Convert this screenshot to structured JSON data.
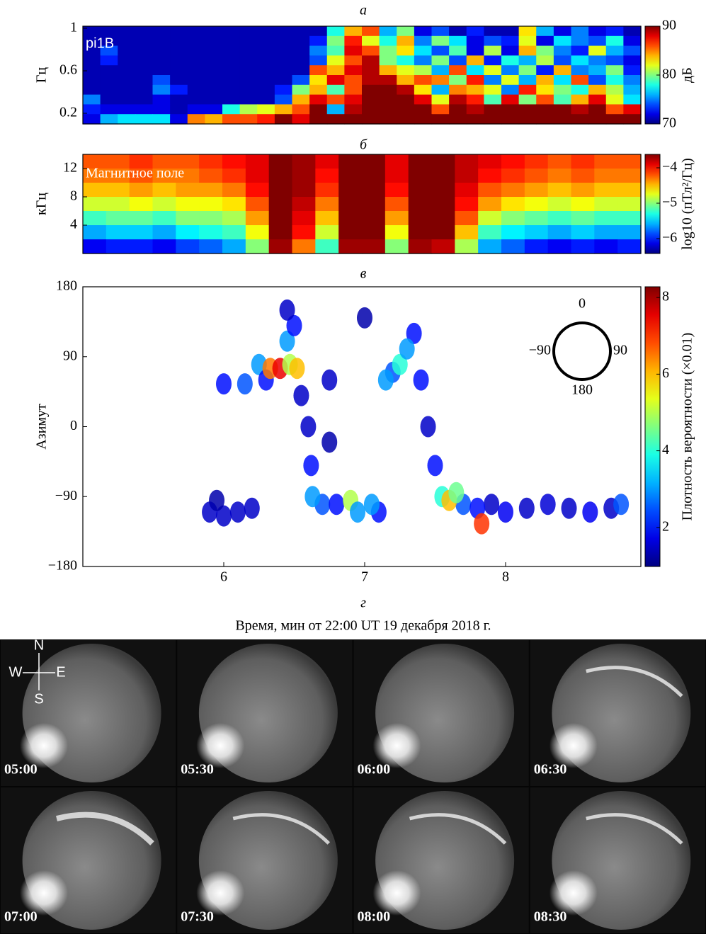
{
  "chart_data": [
    {
      "type": "heatmap",
      "title": "а",
      "annotation": "pi1B",
      "ylabel": "Гц",
      "zlabel": "дБ",
      "xlim": [
        5,
        8.96
      ],
      "ylim": [
        0.1,
        1.02
      ],
      "yticks": [
        1,
        0.6,
        0.2
      ],
      "clim": [
        70,
        90
      ],
      "cticks": [
        90,
        80,
        70
      ],
      "z": [
        [
          71,
          71,
          71,
          71,
          71,
          71,
          71,
          71,
          71,
          71,
          71,
          71,
          71,
          71,
          78,
          84,
          86,
          76,
          80,
          72,
          74,
          71,
          73,
          71,
          71,
          83,
          76,
          72,
          75,
          72,
          73,
          71
        ],
        [
          71,
          71,
          71,
          71,
          71,
          71,
          71,
          71,
          71,
          71,
          71,
          71,
          71,
          73,
          80,
          87,
          82,
          78,
          84,
          75,
          80,
          77,
          72,
          74,
          73,
          82,
          72,
          77,
          75,
          74,
          78,
          72
        ],
        [
          71,
          74,
          71,
          71,
          71,
          71,
          71,
          71,
          71,
          71,
          71,
          71,
          71,
          75,
          79,
          88,
          86,
          80,
          83,
          77,
          74,
          79,
          72,
          81,
          72,
          84,
          80,
          75,
          73,
          82,
          76,
          74
        ],
        [
          71,
          73,
          71,
          71,
          71,
          71,
          71,
          71,
          71,
          71,
          71,
          71,
          71,
          74,
          82,
          86,
          89,
          80,
          78,
          75,
          80,
          74,
          84,
          73,
          78,
          76,
          81,
          74,
          77,
          75,
          74,
          72
        ],
        [
          71,
          71,
          71,
          71,
          71,
          71,
          71,
          71,
          71,
          71,
          71,
          71,
          71,
          86,
          84,
          88,
          89,
          84,
          82,
          81,
          76,
          86,
          77,
          82,
          75,
          80,
          73,
          84,
          75,
          76,
          80,
          73
        ],
        [
          71,
          71,
          71,
          71,
          74,
          71,
          71,
          71,
          71,
          71,
          71,
          71,
          74,
          83,
          88,
          86,
          89,
          89,
          84,
          86,
          85,
          80,
          87,
          75,
          82,
          76,
          84,
          77,
          86,
          74,
          78,
          75
        ],
        [
          71,
          71,
          71,
          71,
          75,
          73,
          71,
          71,
          71,
          71,
          71,
          73,
          80,
          84,
          79,
          86,
          90,
          90,
          89,
          83,
          76,
          85,
          84,
          82,
          75,
          87,
          83,
          80,
          78,
          84,
          81,
          76
        ],
        [
          75,
          71,
          71,
          71,
          72,
          71,
          71,
          71,
          71,
          71,
          71,
          74,
          84,
          88,
          86,
          88,
          90,
          90,
          90,
          88,
          82,
          89,
          87,
          79,
          88,
          80,
          86,
          79,
          84,
          88,
          82,
          77
        ],
        [
          73,
          72,
          72,
          72,
          72,
          71,
          72,
          72,
          78,
          81,
          82,
          84,
          86,
          90,
          76,
          89,
          90,
          90,
          90,
          90,
          86,
          90,
          89,
          90,
          90,
          90,
          90,
          90,
          89,
          90,
          86,
          88
        ],
        [
          72,
          76,
          77,
          77,
          77,
          72,
          85,
          84,
          86,
          86,
          87,
          90,
          88,
          90,
          90,
          90,
          90,
          90,
          90,
          90,
          90,
          90,
          90,
          90,
          90,
          90,
          90,
          90,
          90,
          90,
          90,
          90
        ]
      ]
    },
    {
      "type": "heatmap",
      "title": "б",
      "annotation": "Магнитное поле",
      "ylabel": "кГц",
      "zlabel": "log10 (пТл²/Гц)",
      "xlim": [
        5,
        8.96
      ],
      "ylim": [
        0,
        14
      ],
      "yticks": [
        12,
        8,
        4
      ],
      "clim": [
        -6.42,
        -3.62
      ],
      "cticks": [
        {
          "value": -4,
          "label": "−4"
        },
        {
          "value": -5,
          "label": "−5"
        },
        {
          "value": -6,
          "label": "−6"
        }
      ],
      "z": [
        [
          -4.2,
          -4.2,
          -4.1,
          -4.2,
          -4.2,
          -4.1,
          -4.0,
          -3.9,
          -3.6,
          -3.7,
          -3.9,
          -3.6,
          -3.6,
          -3.9,
          -3.6,
          -3.6,
          -3.8,
          -3.9,
          -4.0,
          -4.1,
          -4.2,
          -4.1,
          -4.2,
          -4.2
        ],
        [
          -4.3,
          -4.3,
          -4.2,
          -4.3,
          -4.3,
          -4.2,
          -4.1,
          -3.9,
          -3.6,
          -3.7,
          -4.0,
          -3.6,
          -3.6,
          -3.9,
          -3.6,
          -3.6,
          -3.8,
          -4.0,
          -4.1,
          -4.2,
          -4.3,
          -4.2,
          -4.3,
          -4.3
        ],
        [
          -4.5,
          -4.5,
          -4.4,
          -4.5,
          -4.4,
          -4.4,
          -4.3,
          -4.0,
          -3.6,
          -3.7,
          -4.1,
          -3.6,
          -3.6,
          -4.0,
          -3.6,
          -3.6,
          -3.9,
          -4.2,
          -4.3,
          -4.4,
          -4.5,
          -4.4,
          -4.5,
          -4.5
        ],
        [
          -4.8,
          -4.8,
          -4.7,
          -4.8,
          -4.7,
          -4.7,
          -4.6,
          -4.2,
          -3.6,
          -3.8,
          -4.3,
          -3.6,
          -3.6,
          -4.2,
          -3.6,
          -3.6,
          -4.0,
          -4.4,
          -4.6,
          -4.7,
          -4.8,
          -4.7,
          -4.8,
          -4.8
        ],
        [
          -5.2,
          -5.1,
          -5.1,
          -5.2,
          -5.0,
          -5.0,
          -4.9,
          -4.4,
          -3.6,
          -3.9,
          -4.5,
          -3.6,
          -3.6,
          -4.4,
          -3.6,
          -3.6,
          -4.2,
          -4.8,
          -5.0,
          -5.1,
          -5.2,
          -5.1,
          -5.2,
          -5.2
        ],
        [
          -5.6,
          -5.5,
          -5.5,
          -5.6,
          -5.4,
          -5.3,
          -5.2,
          -4.7,
          -3.6,
          -4.0,
          -4.8,
          -3.6,
          -3.6,
          -4.7,
          -3.6,
          -3.6,
          -4.5,
          -5.2,
          -5.4,
          -5.5,
          -5.6,
          -5.5,
          -5.6,
          -5.6
        ],
        [
          -6.1,
          -6.0,
          -6.0,
          -6.1,
          -5.9,
          -5.8,
          -5.6,
          -5.0,
          -3.7,
          -4.3,
          -5.2,
          -3.7,
          -3.7,
          -5.0,
          -3.7,
          -3.8,
          -4.9,
          -5.6,
          -5.8,
          -6.0,
          -6.1,
          -6.0,
          -6.1,
          -6.0
        ]
      ]
    },
    {
      "type": "scatter",
      "title": "в",
      "ylabel": "Азимут",
      "zlabel": "Плотность вероятности (×0.01)",
      "xlabel_title": "г",
      "xlabel": "Время, мин от  22:00 UT 19 декабря 2018 г.",
      "xlim": [
        5,
        8.96
      ],
      "xticks": [
        6,
        7,
        8
      ],
      "ylim": [
        -180,
        180
      ],
      "yticks": [
        180,
        90,
        0,
        {
          "value": -90,
          "label": "−90"
        },
        {
          "value": -180,
          "label": "−180"
        }
      ],
      "clim": [
        0.98,
        8.28
      ],
      "cticks": [
        2,
        4,
        6,
        8
      ],
      "compass_labels": [
        "0",
        "−90",
        "90",
        "180"
      ],
      "x": [
        5.9,
        6.0,
        6.1,
        6.2,
        5.95,
        6.0,
        6.15,
        6.25,
        6.3,
        6.45,
        6.5,
        6.55,
        6.6,
        6.62,
        6.75,
        6.75,
        7.0,
        6.45,
        7.45,
        7.9,
        8.0,
        8.15,
        8.3,
        8.45,
        8.6,
        8.75,
        8.82,
        6.7,
        6.8,
        7.1,
        7.2,
        7.35,
        7.4,
        7.5,
        7.7,
        7.8,
        6.33,
        6.4,
        6.47,
        6.52,
        6.63,
        6.9,
        6.95,
        7.05,
        7.15,
        7.25,
        7.3,
        7.55,
        7.6,
        7.65,
        7.83
      ],
      "y": [
        -110,
        -115,
        -110,
        -105,
        -95,
        55,
        55,
        80,
        60,
        110,
        130,
        40,
        0,
        -50,
        60,
        -20,
        140,
        150,
        0,
        -100,
        -110,
        -105,
        -100,
        -105,
        -110,
        -105,
        -100,
        -100,
        -100,
        -110,
        70,
        120,
        60,
        -50,
        -100,
        -105,
        75,
        75,
        80,
        75,
        -90,
        -95,
        -110,
        -100,
        60,
        80,
        100,
        -90,
        -95,
        -85,
        -125
      ],
      "values": [
        1.5,
        1.5,
        1.5,
        1.5,
        1.3,
        2,
        2.5,
        3,
        2,
        3,
        2,
        1.5,
        1.5,
        2,
        1.5,
        1.3,
        1.3,
        1.5,
        1.5,
        1.5,
        1.8,
        1.5,
        1.6,
        1.5,
        1.8,
        1.5,
        2.5,
        2.5,
        2,
        2,
        2.5,
        2,
        2,
        2,
        2.5,
        2,
        6.5,
        7.5,
        5,
        6,
        3,
        5,
        3,
        3,
        3,
        4,
        3,
        4,
        6,
        4.5,
        7
      ]
    }
  ],
  "photos": [
    {
      "time": "05:00"
    },
    {
      "time": "05:30"
    },
    {
      "time": "06:00"
    },
    {
      "time": "06:30"
    },
    {
      "time": "07:00"
    },
    {
      "time": "07:30"
    },
    {
      "time": "08:00"
    },
    {
      "time": "08:30"
    }
  ],
  "compass": [
    "N",
    "W",
    "E",
    "S"
  ]
}
